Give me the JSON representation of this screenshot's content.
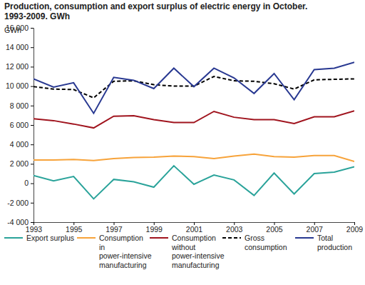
{
  "chart_data": {
    "type": "line",
    "title": "Production, consumption and export surplus of electric energy in October.",
    "subtitle": "1993-2009. GWh",
    "y_label": "GWh",
    "x": [
      1993,
      1994,
      1995,
      1996,
      1997,
      1998,
      1999,
      2000,
      2001,
      2002,
      2003,
      2004,
      2005,
      2006,
      2007,
      2008,
      2009
    ],
    "xlim": [
      1993,
      2009
    ],
    "xticks": [
      1993,
      1995,
      1997,
      1999,
      2001,
      2003,
      2005,
      2007,
      2009
    ],
    "ylim": [
      -4000,
      16000
    ],
    "yticks": [
      {
        "value": -4000,
        "label": "-4 000"
      },
      {
        "value": -2000,
        "label": "-2 000"
      },
      0,
      {
        "value": 2000,
        "label": "2 000"
      },
      {
        "value": 4000,
        "label": "4 000"
      },
      {
        "value": 6000,
        "label": "6 000"
      },
      {
        "value": 8000,
        "label": "8 000"
      },
      {
        "value": 10000,
        "label": "10 000"
      },
      {
        "value": 12000,
        "label": "12 000"
      },
      {
        "value": 14000,
        "label": "14 000"
      },
      {
        "value": 16000,
        "label": "16 000"
      }
    ],
    "grid": false,
    "legend": "bottom",
    "series": [
      {
        "name": "Export surplus",
        "color": "#2aa39a",
        "line_style": "solid",
        "values": [
          800,
          250,
          700,
          -1600,
          400,
          150,
          -400,
          1800,
          -100,
          850,
          350,
          -1250,
          1050,
          -1100,
          1000,
          1150,
          1700
        ]
      },
      {
        "name": "Consumption in power-intensive manufacturing",
        "color": "#f7a33a",
        "line_style": "solid",
        "values": [
          2400,
          2400,
          2450,
          2350,
          2550,
          2650,
          2700,
          2800,
          2750,
          2550,
          2800,
          3000,
          2750,
          2700,
          2850,
          2850,
          2250
        ]
      },
      {
        "name": "Consumption without power-intensive manufacturing",
        "color": "#a0141e",
        "line_style": "solid",
        "values": [
          6650,
          6450,
          6100,
          5700,
          6900,
          6950,
          6550,
          6250,
          6250,
          7400,
          6800,
          6550,
          6550,
          6150,
          6850,
          6850,
          7450
        ]
      },
      {
        "name": "Gross consumption",
        "color": "#000000",
        "line_style": "dashed",
        "values": [
          9950,
          9700,
          9650,
          8800,
          10500,
          10550,
          10150,
          10000,
          10000,
          11000,
          10550,
          10500,
          10250,
          9700,
          10650,
          10700,
          10750
        ]
      },
      {
        "name": "Total production",
        "color": "#283891",
        "line_style": "solid",
        "values": [
          10750,
          9900,
          10350,
          7200,
          10900,
          10600,
          9750,
          11850,
          9950,
          11850,
          10850,
          9250,
          11300,
          8600,
          11700,
          11850,
          12450
        ]
      }
    ]
  }
}
